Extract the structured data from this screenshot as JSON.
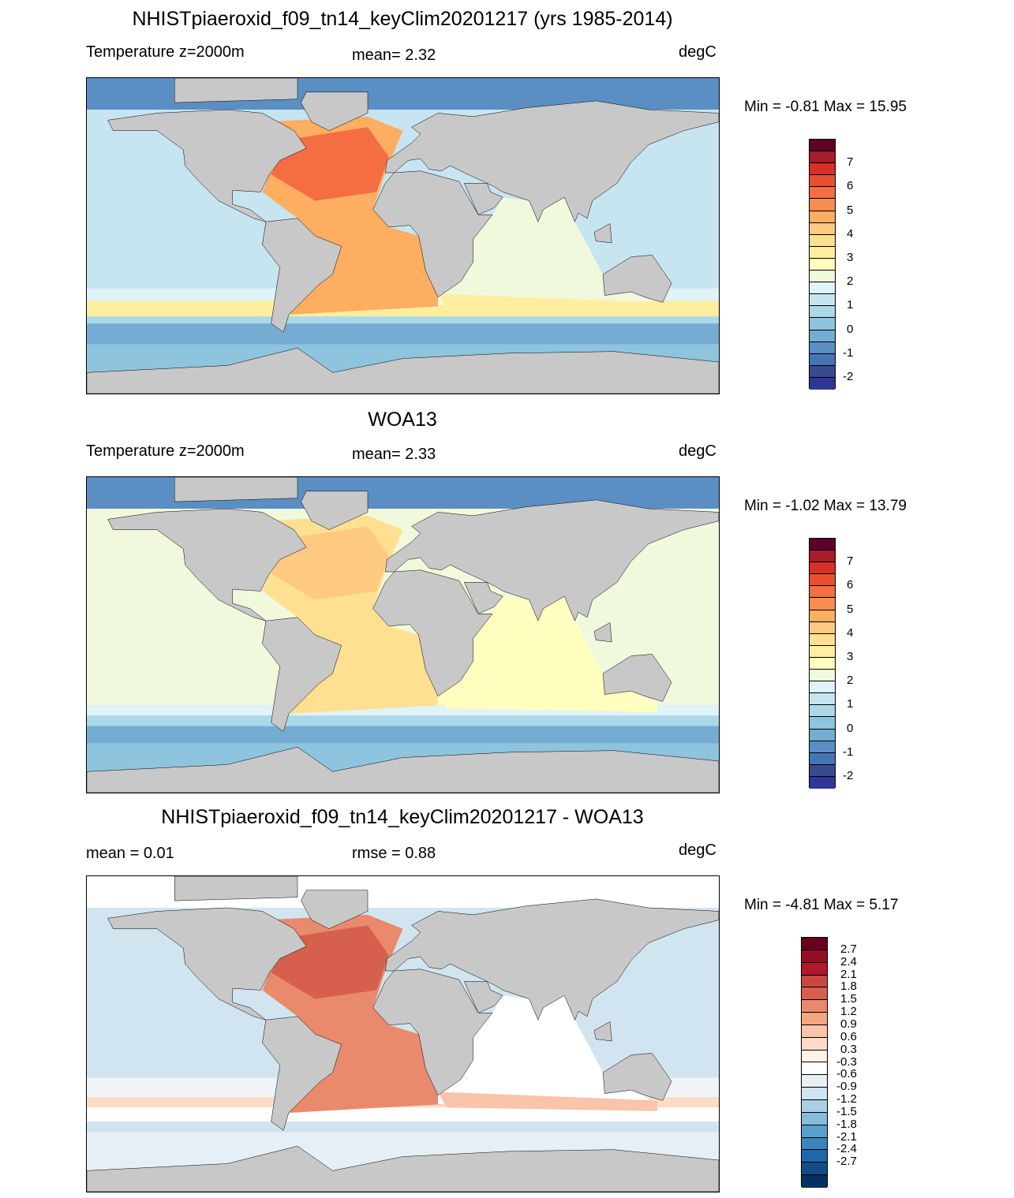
{
  "panels": [
    {
      "title": "NHISTpiaeroxid_f09_tn14_keyClim20201217 (yrs 1985-2014)",
      "left_label": "Temperature z=2000m",
      "center_label": "mean=   2.32",
      "units": "degC",
      "minmax": "Min =  -0.81 Max =  15.95",
      "colorbar": {
        "labels": [
          "7",
          "6",
          "5",
          "4",
          "3",
          "2",
          "1",
          "0",
          "-1",
          "-2"
        ],
        "colors": [
          "#5e0027",
          "#a51c2a",
          "#d73027",
          "#e8502f",
          "#f46d43",
          "#f88d52",
          "#fdae61",
          "#fec980",
          "#fee090",
          "#ffee9f",
          "#ffffbf",
          "#f0f9dc",
          "#e0f3f8",
          "#c6e5f0",
          "#abd9e9",
          "#8ec4de",
          "#74add1",
          "#5b8fc4",
          "#4575b4",
          "#394a8f",
          "#313695"
        ]
      }
    },
    {
      "title": "WOA13",
      "left_label": "Temperature z=2000m",
      "center_label": "mean=   2.33",
      "units": "degC",
      "minmax": "Min =  -1.02 Max =  13.79",
      "colorbar": {
        "labels": [
          "7",
          "6",
          "5",
          "4",
          "3",
          "2",
          "1",
          "0",
          "-1",
          "-2"
        ],
        "colors": [
          "#5e0027",
          "#a51c2a",
          "#d73027",
          "#e8502f",
          "#f46d43",
          "#f88d52",
          "#fdae61",
          "#fec980",
          "#fee090",
          "#ffee9f",
          "#ffffbf",
          "#f0f9dc",
          "#e0f3f8",
          "#c6e5f0",
          "#abd9e9",
          "#8ec4de",
          "#74add1",
          "#5b8fc4",
          "#4575b4",
          "#394a8f",
          "#313695"
        ]
      }
    },
    {
      "title": "NHISTpiaeroxid_f09_tn14_keyClim20201217 - WOA13",
      "left_label": "mean =   0.01",
      "center_label": "rmse =   0.88",
      "units": "degC",
      "minmax": "Min =  -4.81 Max =   5.17",
      "colorbar": {
        "labels": [
          "2.7",
          "2.4",
          "2.1",
          "1.8",
          "1.5",
          "1.2",
          "0.9",
          "0.6",
          "0.3",
          "-0.3",
          "-0.6",
          "-0.9",
          "-1.2",
          "-1.5",
          "-1.8",
          "-2.1",
          "-2.4",
          "-2.7"
        ],
        "colors": [
          "#67001f",
          "#940e26",
          "#b2182b",
          "#c94741",
          "#d6604d",
          "#e98a6d",
          "#f4a582",
          "#f9c4a9",
          "#fddbc7",
          "#fff3ec",
          "#ffffff",
          "#e5eff5",
          "#cfe4ef",
          "#a9d0e5",
          "#84bcdb",
          "#5aa0cc",
          "#3d85bc",
          "#2166ac",
          "#144c8a",
          "#053061"
        ]
      }
    }
  ]
}
